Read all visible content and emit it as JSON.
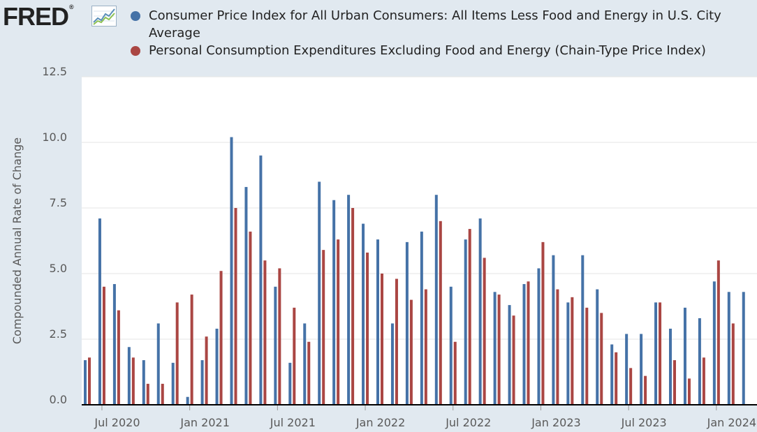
{
  "logo": {
    "text": "FRED",
    "reg": "®",
    "icon": "fred-line-chart-icon"
  },
  "colors": {
    "series1": "#4572a7",
    "series2": "#aa4643",
    "background": "#e1e9f0",
    "plot": "#ffffff"
  },
  "chart_data": {
    "type": "bar",
    "title": "",
    "xlabel": "",
    "ylabel": "Compounded Annual Rate of Change",
    "ylim": [
      0,
      12.5
    ],
    "yticks": [
      "0.0",
      "2.5",
      "5.0",
      "7.5",
      "10.0",
      "12.5"
    ],
    "xticks": [
      "Jul 2020",
      "Jan 2021",
      "Jul 2021",
      "Jan 2022",
      "Jul 2022",
      "Jan 2023",
      "Jul 2023",
      "Jan 2024"
    ],
    "grid": true,
    "legend_position": "top",
    "categories": [
      "2020-06",
      "2020-07",
      "2020-08",
      "2020-09",
      "2020-10",
      "2020-11",
      "2020-12",
      "2021-01",
      "2021-02",
      "2021-03",
      "2021-04",
      "2021-05",
      "2021-06",
      "2021-07",
      "2021-08",
      "2021-09",
      "2021-10",
      "2021-11",
      "2021-12",
      "2022-01",
      "2022-02",
      "2022-03",
      "2022-04",
      "2022-05",
      "2022-06",
      "2022-07",
      "2022-08",
      "2022-09",
      "2022-10",
      "2022-11",
      "2022-12",
      "2023-01",
      "2023-02",
      "2023-03",
      "2023-04",
      "2023-05",
      "2023-06",
      "2023-07",
      "2023-08",
      "2023-09",
      "2023-10",
      "2023-11",
      "2023-12",
      "2024-01",
      "2024-02",
      "2024-03",
      "2024-04"
    ],
    "series": [
      {
        "name": "Consumer Price Index for All Urban Consumers: All Items Less Food and Energy in U.S. City Average",
        "values": [
          1.7,
          7.1,
          4.6,
          2.2,
          1.7,
          3.1,
          1.6,
          0.3,
          1.7,
          2.9,
          10.2,
          8.3,
          9.5,
          4.5,
          1.6,
          3.1,
          8.5,
          7.8,
          8.0,
          6.9,
          6.3,
          3.1,
          6.2,
          6.6,
          8.0,
          4.5,
          6.3,
          7.1,
          4.3,
          3.8,
          4.6,
          5.2,
          5.7,
          3.9,
          5.7,
          4.4,
          2.3,
          2.7,
          2.7,
          3.9,
          2.9,
          3.7,
          3.3,
          4.7,
          4.3,
          4.3,
          null
        ]
      },
      {
        "name": "Personal Consumption Expenditures Excluding Food and Energy (Chain-Type Price Index)",
        "values": [
          1.8,
          4.5,
          3.6,
          1.8,
          0.8,
          0.8,
          3.9,
          4.2,
          2.6,
          5.1,
          7.5,
          6.6,
          5.5,
          5.2,
          3.7,
          2.4,
          5.9,
          6.3,
          7.5,
          5.8,
          5.0,
          4.8,
          4.0,
          4.4,
          7.0,
          2.4,
          6.7,
          5.6,
          4.2,
          3.4,
          4.7,
          6.2,
          4.4,
          4.1,
          3.7,
          3.5,
          2.0,
          1.4,
          1.1,
          3.9,
          1.7,
          1.0,
          1.8,
          5.5,
          3.1,
          null,
          null
        ]
      }
    ]
  }
}
